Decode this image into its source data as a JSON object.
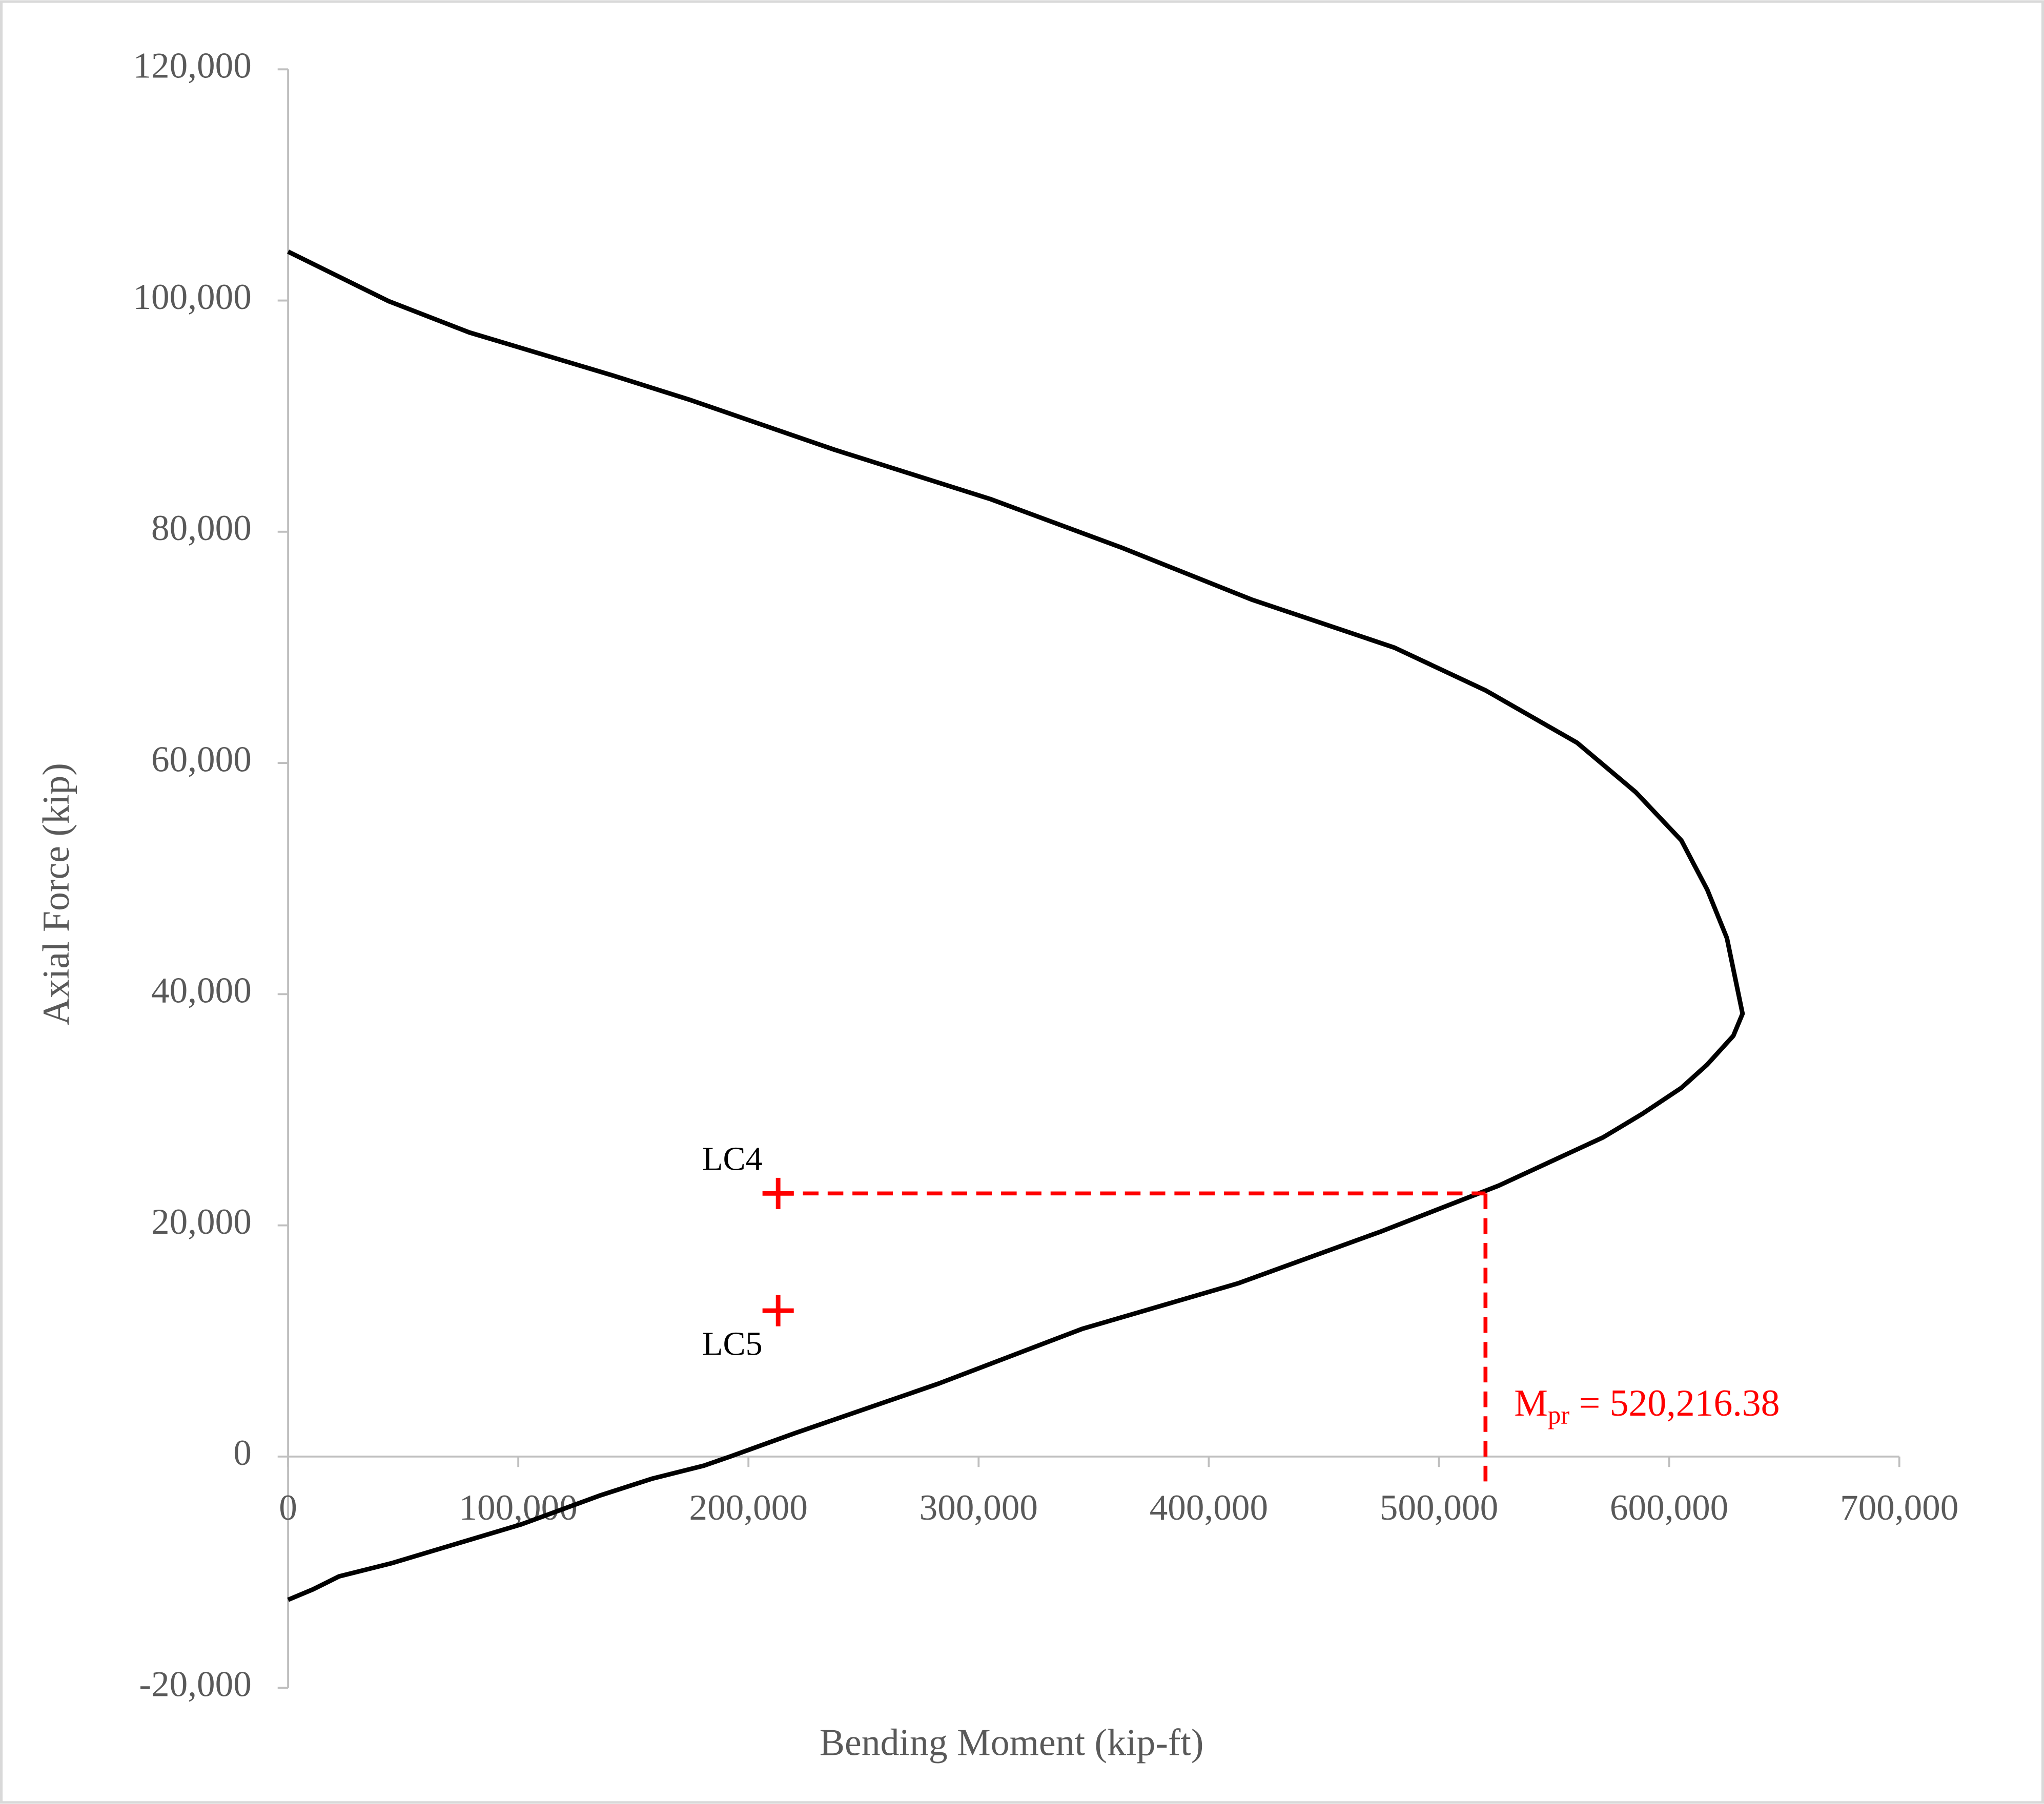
{
  "chart_data": {
    "type": "line",
    "x_label": "Bending Moment (kip-ft)",
    "y_label": "Axial Force (kip)",
    "color": "#000000",
    "x": [
      0,
      43600,
      78700,
      141000,
      175000,
      237300,
      305200,
      361800,
      418500,
      480700,
      520400,
      560000,
      585500,
      605300,
      616600,
      625100,
      631900,
      627900,
      616600,
      605300,
      588300,
      571300,
      526000,
      475100,
      412800,
      344900,
      282600,
      220300,
      192000,
      180600,
      158000,
      135300,
      101400,
      44700,
      22100,
      10800,
      0
    ],
    "values": [
      104230,
      99950,
      97240,
      93520,
      91380,
      87100,
      82820,
      78650,
      74140,
      69970,
      66260,
      61750,
      57470,
      53300,
      49020,
      44850,
      38310,
      36400,
      33920,
      31890,
      29640,
      27610,
      23440,
      19490,
      14990,
      11040,
      6310,
      2030,
      0,
      -790,
      -1920,
      -3380,
      -5860,
      -9240,
      -10370,
      -11490,
      -12390
    ],
    "points": [
      {
        "label": "LC4",
        "x": 212900,
        "y": 22760
      },
      {
        "label": "LC5",
        "x": 212900,
        "y": 12620
      }
    ],
    "marker_color": "#ff0000",
    "annotation": {
      "symbol": "M",
      "subscript": "pr",
      "text": " = 520,216.38",
      "value": 520216.38
    },
    "xlim": [
      0,
      700000
    ],
    "xticks": [
      0,
      {
        "value": 100000,
        "label": "100,000"
      },
      {
        "value": 200000,
        "label": "200,000"
      },
      {
        "value": 300000,
        "label": "300,000"
      },
      {
        "value": 400000,
        "label": "400,000"
      },
      {
        "value": 500000,
        "label": "500,000"
      },
      {
        "value": 600000,
        "label": "600,000"
      },
      {
        "value": 700000,
        "label": "700,000"
      }
    ],
    "ylim": [
      -20000,
      120000
    ],
    "yticks": [
      {
        "value": -20000,
        "label": "-20,000"
      },
      0,
      {
        "value": 20000,
        "label": "20,000"
      },
      {
        "value": 40000,
        "label": "40,000"
      },
      {
        "value": 60000,
        "label": "60,000"
      },
      {
        "value": 80000,
        "label": "80,000"
      },
      {
        "value": 100000,
        "label": "100,000"
      },
      {
        "value": 120000,
        "label": "120,000"
      }
    ]
  }
}
